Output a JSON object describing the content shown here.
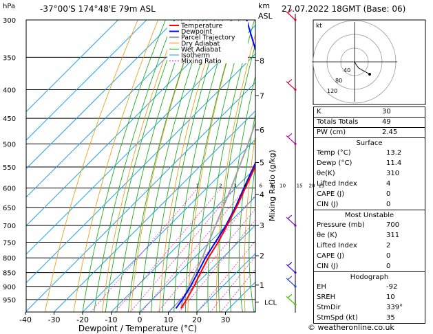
{
  "header": {
    "location": "-37°00'S  174°48'E  79m  ASL",
    "date": "27.07.2022  18GMT  (Base: 06)",
    "hpa_label": "hPa",
    "km_label": "km",
    "asl_label": "ASL"
  },
  "chart_data": {
    "type": "skew-t",
    "xlabel": "Dewpoint / Temperature (°C)",
    "ylabel_right": "Mixing Ratio (g/kg)",
    "x_ticks": [
      -40,
      -30,
      -20,
      -10,
      0,
      10,
      20,
      30
    ],
    "pressure_ticks": [
      300,
      350,
      400,
      450,
      500,
      550,
      600,
      650,
      700,
      750,
      800,
      850,
      900,
      950
    ],
    "km_ticks": [
      {
        "label": "8",
        "p": 355
      },
      {
        "label": "7",
        "p": 410
      },
      {
        "label": "6",
        "p": 472
      },
      {
        "label": "5",
        "p": 540
      },
      {
        "label": "4",
        "p": 616
      },
      {
        "label": "3",
        "p": 700
      },
      {
        "label": "2",
        "p": 793
      },
      {
        "label": "1",
        "p": 895
      }
    ],
    "lcl": {
      "label": "LCL",
      "p": 960
    },
    "mixing_ratio_labels": [
      "1",
      "2",
      "3",
      "4",
      "6",
      "8",
      "10",
      "15",
      "20",
      "25"
    ],
    "legend": [
      {
        "name": "Temperature",
        "color": "#ff0000"
      },
      {
        "name": "Dewpoint",
        "color": "#0000ff"
      },
      {
        "name": "Parcel Trajectory",
        "color": "#a0a0a0"
      },
      {
        "name": "Dry Adiabat",
        "color": "#ff8c00"
      },
      {
        "name": "Wet Adiabat",
        "color": "#00aa00"
      },
      {
        "name": "Isotherm",
        "color": "#00a0ff"
      },
      {
        "name": "Mixing Ratio",
        "color": "#ff00ff"
      }
    ],
    "temperature": [
      {
        "p": 985,
        "t": 13.2
      },
      {
        "p": 950,
        "t": 12.0
      },
      {
        "p": 900,
        "t": 10.0
      },
      {
        "p": 850,
        "t": 7.5
      },
      {
        "p": 800,
        "t": 5.0
      },
      {
        "p": 750,
        "t": 3.0
      },
      {
        "p": 700,
        "t": 0.2
      },
      {
        "p": 650,
        "t": -2.8
      },
      {
        "p": 600,
        "t": -6.5
      },
      {
        "p": 550,
        "t": -10.5
      },
      {
        "p": 500,
        "t": -15.0
      },
      {
        "p": 450,
        "t": -20.5
      },
      {
        "p": 400,
        "t": -27.0
      },
      {
        "p": 350,
        "t": -33.0
      },
      {
        "p": 300,
        "t": -42.0
      }
    ],
    "dewpoint": [
      {
        "p": 985,
        "t": 11.4
      },
      {
        "p": 950,
        "t": 10.5
      },
      {
        "p": 900,
        "t": 8.8
      },
      {
        "p": 850,
        "t": 6.5
      },
      {
        "p": 800,
        "t": 4.0
      },
      {
        "p": 750,
        "t": 2.0
      },
      {
        "p": 700,
        "t": -0.2
      },
      {
        "p": 650,
        "t": -3.2
      },
      {
        "p": 600,
        "t": -7.0
      },
      {
        "p": 550,
        "t": -11.0
      },
      {
        "p": 500,
        "t": -15.5
      },
      {
        "p": 450,
        "t": -21.0
      },
      {
        "p": 400,
        "t": -28.0
      },
      {
        "p": 350,
        "t": -48.0
      },
      {
        "p": 300,
        "t": -65.0
      }
    ],
    "parcel": [
      {
        "p": 985,
        "t": 13.2
      },
      {
        "p": 960,
        "t": 11.4
      },
      {
        "p": 900,
        "t": 8.2
      },
      {
        "p": 850,
        "t": 5.6
      },
      {
        "p": 800,
        "t": 2.9
      },
      {
        "p": 700,
        "t": -3.8
      },
      {
        "p": 600,
        "t": -11.5
      },
      {
        "p": 500,
        "t": -21.0
      },
      {
        "p": 400,
        "t": -33.5
      },
      {
        "p": 300,
        "t": -49.0
      }
    ],
    "hodograph": {
      "label": "kt",
      "ring_labels": [
        "40",
        "80",
        "120"
      ]
    }
  },
  "indices": {
    "rows": [
      {
        "k": "K",
        "v": "30"
      },
      {
        "k": "Totals Totals",
        "v": "49"
      },
      {
        "k": "PW (cm)",
        "v": "2.45"
      }
    ]
  },
  "surface": {
    "title": "Surface",
    "rows": [
      {
        "k": "Temp (°C)",
        "v": "13.2"
      },
      {
        "k": "Dewp (°C)",
        "v": "11.4"
      },
      {
        "k": "θe(K)",
        "v": "310"
      },
      {
        "k": "Lifted Index",
        "v": "4"
      },
      {
        "k": "CAPE (J)",
        "v": "0"
      },
      {
        "k": "CIN (J)",
        "v": "0"
      }
    ]
  },
  "most_unstable": {
    "title": "Most Unstable",
    "rows": [
      {
        "k": "Pressure (mb)",
        "v": "700"
      },
      {
        "k": "θe (K)",
        "v": "311"
      },
      {
        "k": "Lifted Index",
        "v": "2"
      },
      {
        "k": "CAPE (J)",
        "v": "0"
      },
      {
        "k": "CIN (J)",
        "v": "0"
      }
    ]
  },
  "hodograph_box": {
    "title": "Hodograph",
    "rows": [
      {
        "k": "EH",
        "v": "-92"
      },
      {
        "k": "SREH",
        "v": "10"
      },
      {
        "k": "StmDir",
        "v": "339°"
      },
      {
        "k": "StmSpd (kt)",
        "v": "35"
      }
    ]
  },
  "footer": "© weatheronline.co.uk"
}
